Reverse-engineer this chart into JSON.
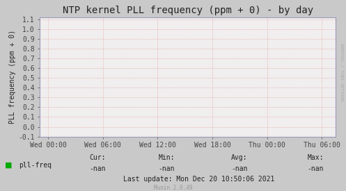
{
  "title": "NTP kernel PLL frequency (ppm + 0) - by day",
  "ylabel": "PLL frequency (ppm + 0)",
  "bg_color": "#C9C9C9",
  "plot_bg_color": "#F0EEEE",
  "grid_color": "#E8A0A0",
  "title_color": "#222222",
  "label_color": "#222222",
  "tick_color": "#444444",
  "axis_color": "#9999BB",
  "ylim": [
    -0.1,
    1.12
  ],
  "yticks": [
    -0.1,
    0.0,
    0.1,
    0.2,
    0.3,
    0.4,
    0.5,
    0.6,
    0.7,
    0.8,
    0.9,
    1.0,
    1.1
  ],
  "xtick_labels": [
    "Wed 00:00",
    "Wed 06:00",
    "Wed 12:00",
    "Wed 18:00",
    "Thu 00:00",
    "Thu 06:00"
  ],
  "xtick_positions": [
    0,
    1,
    2,
    3,
    4,
    5
  ],
  "legend_label": "pll-freq",
  "legend_color": "#00AA00",
  "cur_val": "-nan",
  "min_val": "-nan",
  "avg_val": "-nan",
  "max_val": "-nan",
  "last_update": "Last update: Mon Dec 20 10:50:06 2021",
  "munin_text": "Munin 2.0.49",
  "rrd_text": "RRDTOOL / TOBI OETIKER",
  "font_family": "DejaVu Sans Mono",
  "title_fontsize": 10,
  "label_fontsize": 7,
  "tick_fontsize": 7,
  "small_fontsize": 5.5,
  "rrd_fontsize": 4.5
}
